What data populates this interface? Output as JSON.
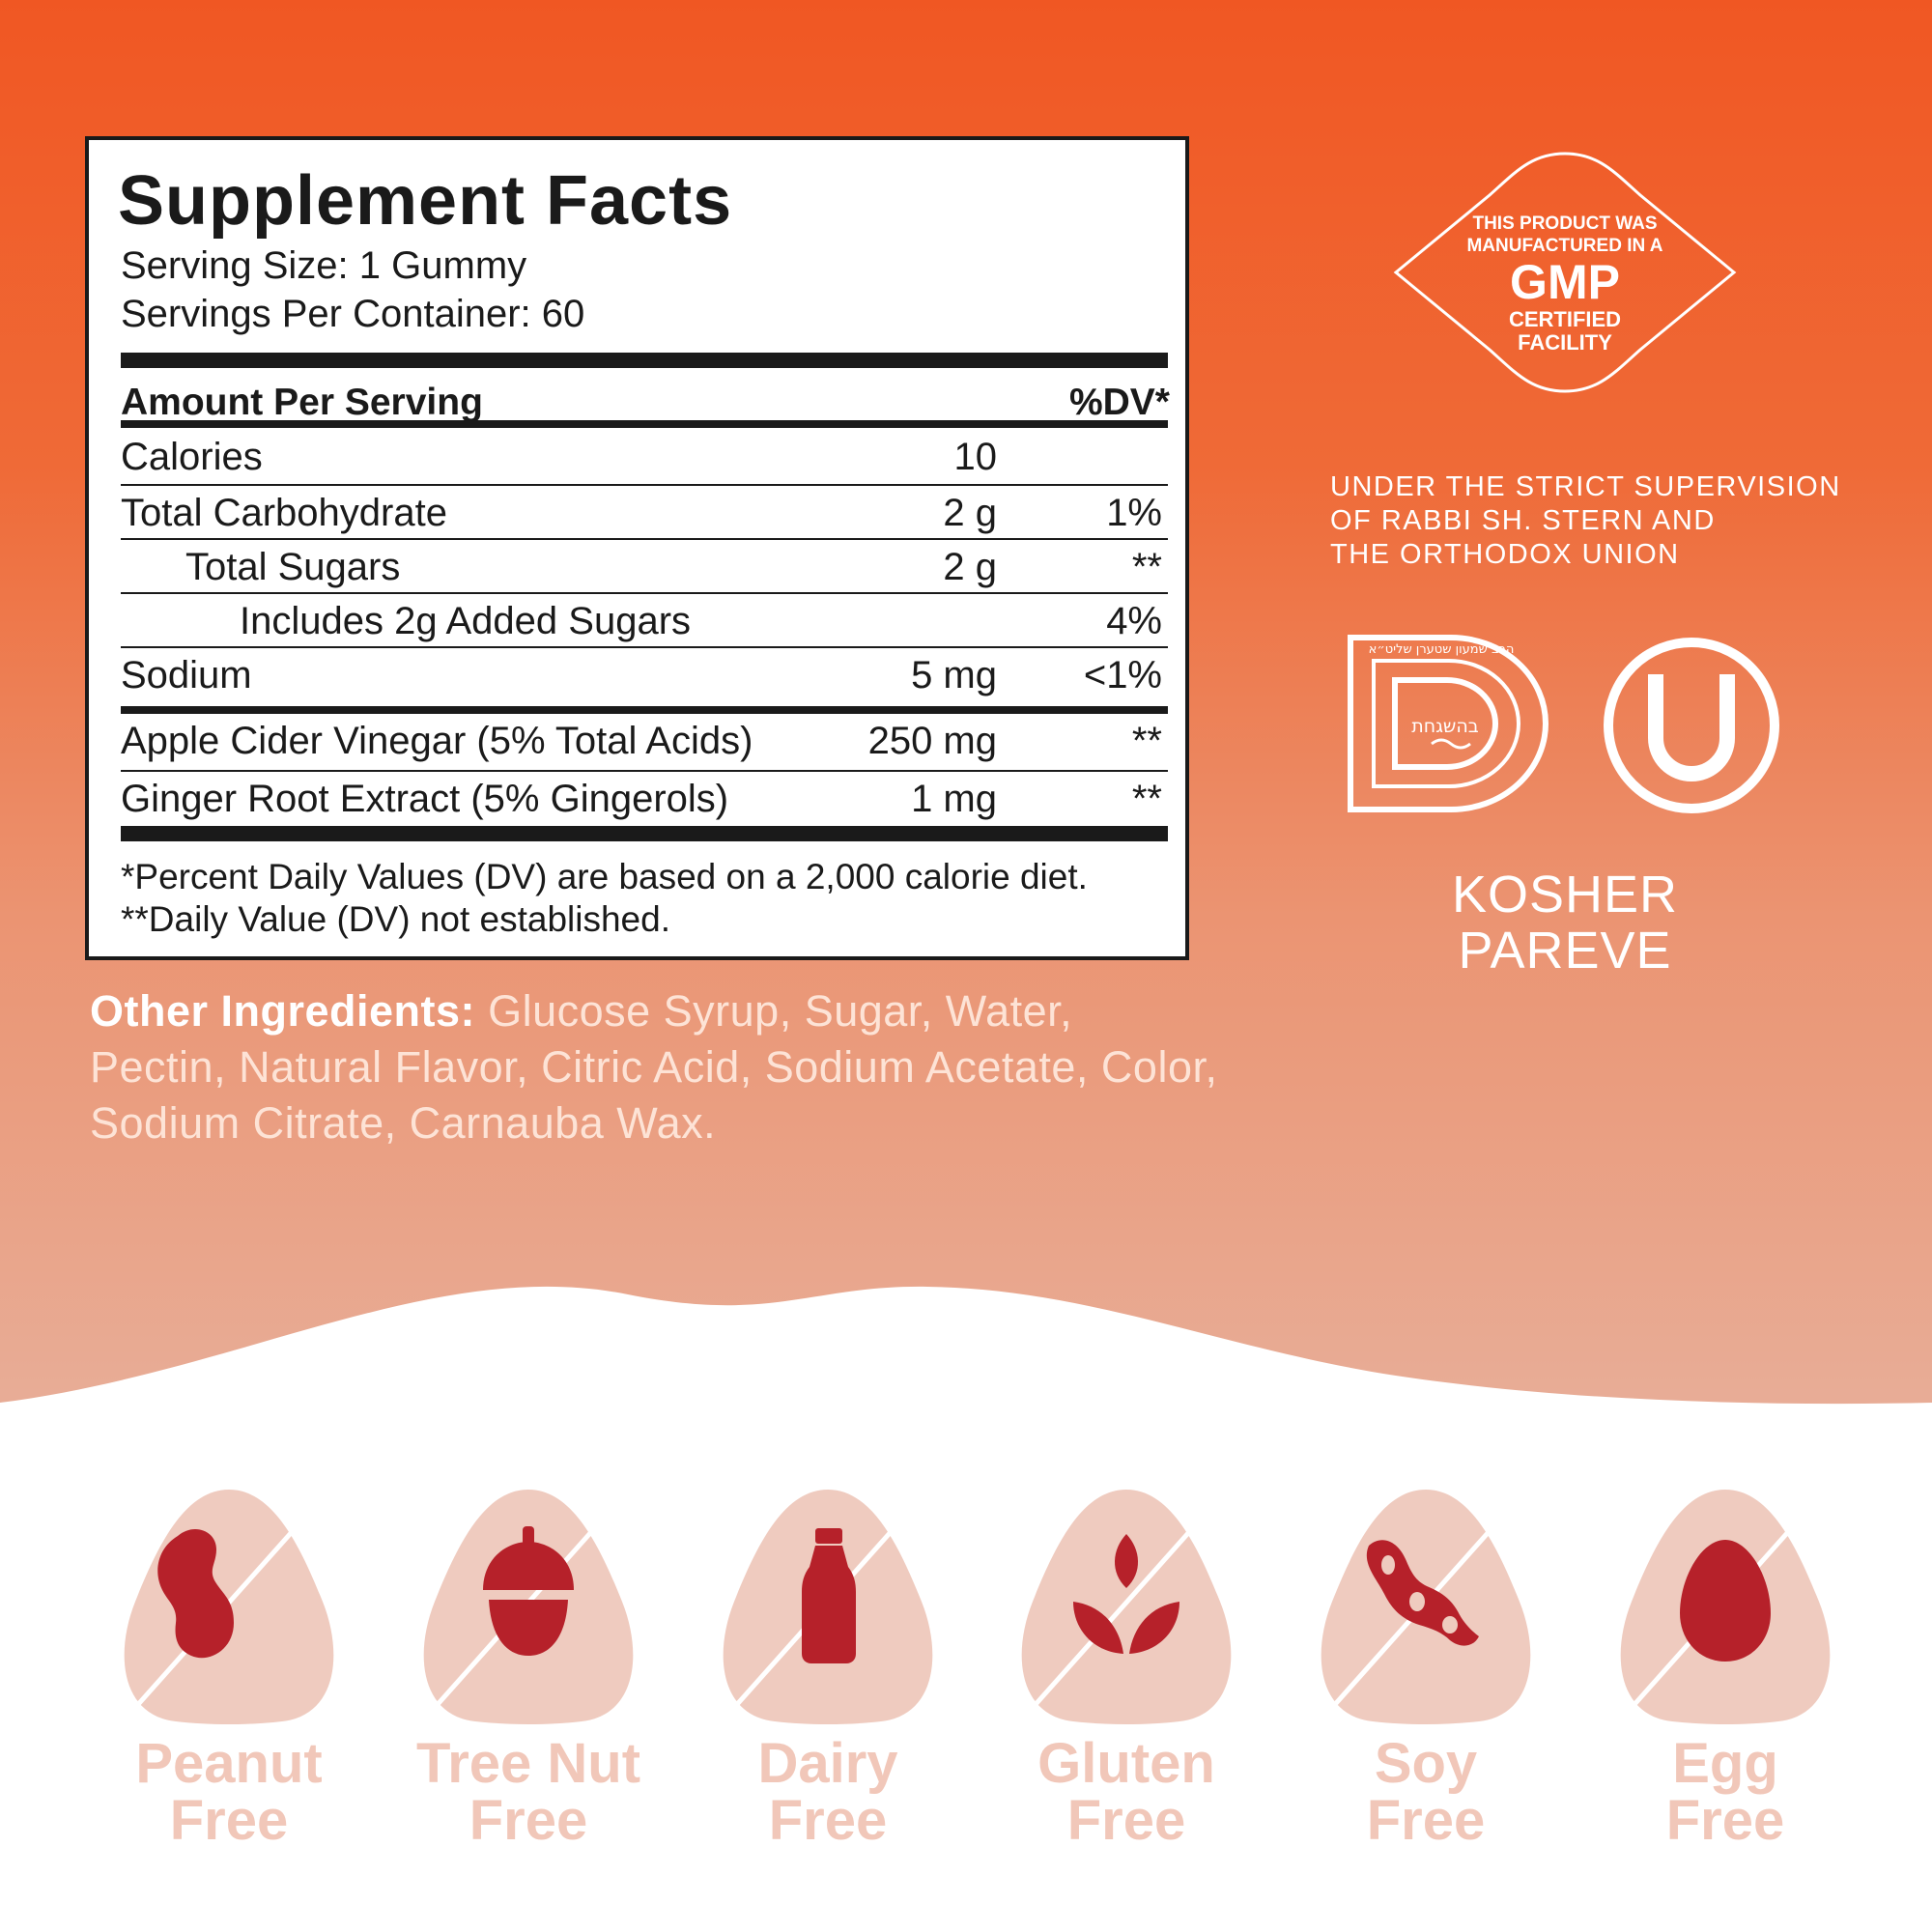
{
  "colors": {
    "orange_top": "#f05723",
    "peach_bottom": "#e8ad97",
    "badge_fill": "#efcbbf",
    "icon_red": "#b6212a",
    "label_pink": "#f1c7b9"
  },
  "facts": {
    "title": "Supplement Facts",
    "serving_size": "Serving Size: 1 Gummy",
    "servings_per_container": "Servings Per Container: 60",
    "header_amount": "Amount Per Serving",
    "header_dv": "%DV*",
    "rows": [
      {
        "name": "Calories",
        "amount": "10",
        "dv": ""
      },
      {
        "name": "Total Carbohydrate",
        "amount": "2 g",
        "dv": "1%"
      },
      {
        "name": "Total Sugars",
        "amount": "2 g",
        "dv": "**"
      },
      {
        "name": "Includes 2g Added Sugars",
        "amount": "",
        "dv": "4%"
      },
      {
        "name": "Sodium",
        "amount": "5 mg",
        "dv": "<1%"
      },
      {
        "name": "Apple Cider Vinegar (5% Total Acids)",
        "amount": "250 mg",
        "dv": "**"
      },
      {
        "name": "Ginger Root Extract (5% Gingerols)",
        "amount": "1 mg",
        "dv": "**"
      }
    ],
    "footnote_1": "*Percent Daily Values (DV) are based on a 2,000 calorie diet.",
    "footnote_2": "**Daily Value (DV) not established."
  },
  "ingredients": {
    "label": "Other Ingredients:",
    "text": "Glucose Syrup, Sugar, Water, Pectin, Natural Flavor, Citric Acid, Sodium Acetate, Color, Sodium Citrate, Carnauba Wax."
  },
  "gmp": {
    "line1": "THIS PRODUCT WAS",
    "line2": "MANUFACTURED IN A",
    "big": "GMP",
    "line3": "CERTIFIED",
    "line4": "FACILITY"
  },
  "supervision": {
    "line1": "UNDER THE STRICT SUPERVISION",
    "line2": "OF RABBI SH. STERN AND",
    "line3": "THE ORTHODOX UNION"
  },
  "kosher": {
    "line1": "KOSHER",
    "line2": "PAREVE",
    "seal_center": "בהשגחת",
    "seal_ring": "הרב שמעון שטערן שליט״א"
  },
  "badges": [
    {
      "icon": "peanut-icon",
      "line1": "Peanut",
      "line2": "Free"
    },
    {
      "icon": "acorn-icon",
      "line1": "Tree Nut",
      "line2": "Free"
    },
    {
      "icon": "milk-bottle-icon",
      "line1": "Dairy",
      "line2": "Free"
    },
    {
      "icon": "wheat-icon",
      "line1": "Gluten",
      "line2": "Free"
    },
    {
      "icon": "soybean-icon",
      "line1": "Soy",
      "line2": "Free"
    },
    {
      "icon": "egg-icon",
      "line1": "Egg",
      "line2": "Free"
    }
  ]
}
